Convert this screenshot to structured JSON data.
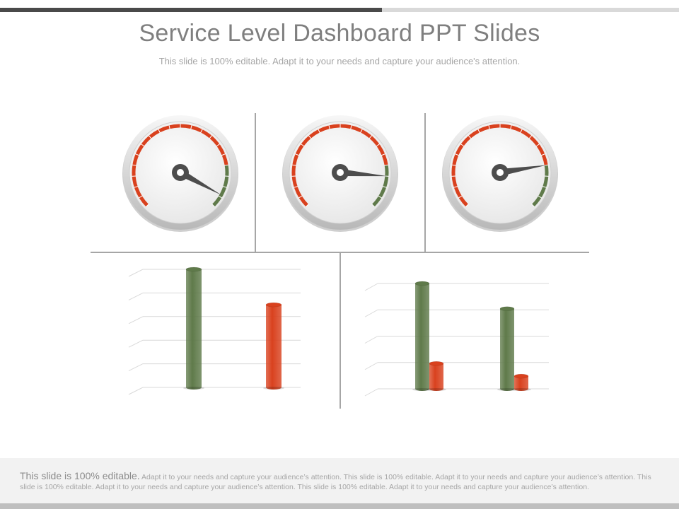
{
  "slide": {
    "title": "Service Level Dashboard PPT Slides",
    "subtitle": "This slide is 100% editable. Adapt it to your needs and capture your audience's attention.",
    "footer_lead": "This slide is 100% editable.",
    "footer_rest": " Adapt it to your needs and capture your audience’s attention. This slide is 100% editable. Adapt it to your needs and capture your audience’s attention. This slide is 100% editable. Adapt it to your needs and capture your audience’s attention. This slide is 100% editable. Adapt it to your needs and capture your audience’s attention."
  },
  "colors": {
    "green": "#5f7a4a",
    "red": "#d9411e",
    "needle": "#4d4d4d",
    "gridline": "#d9d9d9",
    "text_gray": "#7f7f7f"
  },
  "chart_data": [
    {
      "type": "gauge",
      "value": 0.94,
      "range": [
        0,
        1
      ],
      "zones": [
        "red",
        "green"
      ]
    },
    {
      "type": "gauge",
      "value": 0.85,
      "range": [
        0,
        1
      ],
      "zones": [
        "red",
        "green"
      ]
    },
    {
      "type": "gauge",
      "value": 0.8,
      "range": [
        0,
        1
      ],
      "zones": [
        "red",
        "green"
      ]
    },
    {
      "type": "bar",
      "categories": [
        "",
        ""
      ],
      "series": [
        {
          "values": [
            100,
            null
          ],
          "color": "green"
        },
        {
          "values": [
            null,
            70
          ],
          "color": "red"
        }
      ],
      "ylim": [
        0,
        100
      ],
      "grid": true
    },
    {
      "type": "bar",
      "categories": [
        "",
        ""
      ],
      "series": [
        {
          "values": [
            100,
            76
          ],
          "color": "green"
        },
        {
          "values": [
            24,
            12
          ],
          "color": "red"
        }
      ],
      "ylim": [
        0,
        100
      ],
      "grid": true
    }
  ]
}
